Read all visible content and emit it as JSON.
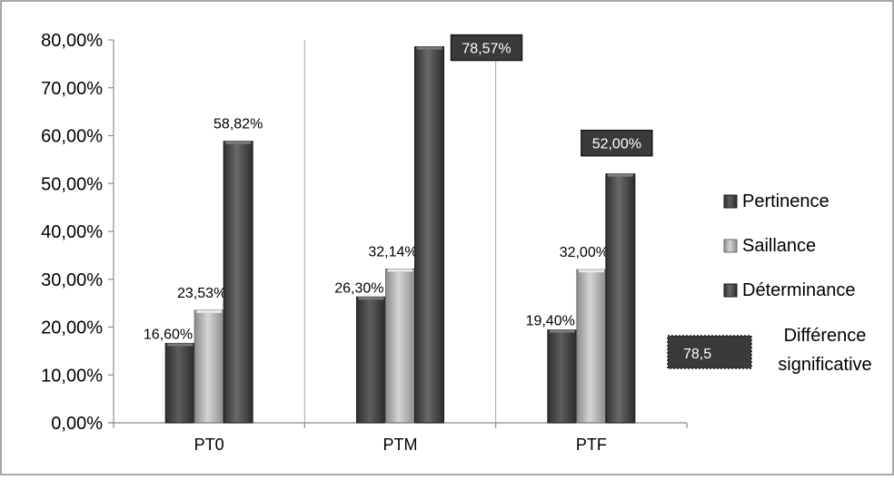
{
  "chart_data": {
    "type": "bar",
    "categories": [
      "PT0",
      "PTM",
      "PTF"
    ],
    "series": [
      {
        "name": "Pertinence",
        "values": [
          16.6,
          26.3,
          19.4
        ],
        "labels": [
          "16,60%",
          "26,30%",
          "19,40%"
        ]
      },
      {
        "name": "Saillance",
        "values": [
          23.53,
          32.14,
          32.0
        ],
        "labels": [
          "23,53%",
          "32,14%",
          "32,00%"
        ]
      },
      {
        "name": "Déterminance",
        "values": [
          58.82,
          78.57,
          52.0
        ],
        "labels": [
          "58,82%",
          "78,57%",
          "52,00%"
        ]
      }
    ],
    "highlighted_labels": [
      {
        "series": 2,
        "category": 1
      },
      {
        "series": 2,
        "category": 2
      }
    ],
    "y_ticks": [
      0,
      10,
      20,
      30,
      40,
      50,
      60,
      70,
      80
    ],
    "y_tick_labels": [
      "0,00%",
      "10,00%",
      "20,00%",
      "30,00%",
      "40,00%",
      "50,00%",
      "60,00%",
      "70,00%",
      "80,00%"
    ],
    "ylim": [
      0,
      80
    ],
    "grid": "vertical category separators",
    "legend": {
      "placement": "right",
      "entries": [
        "Pertinence",
        "Saillance",
        "Déterminance"
      ],
      "note_box_text": "78,5",
      "note_lines": [
        "Différence",
        "significative"
      ]
    },
    "colors": {
      "Pertinence": "#4f4f4f",
      "Saillance": "#bdbdbd",
      "Déterminance": "#595959",
      "highlight_box": "#3a3a3a"
    }
  }
}
